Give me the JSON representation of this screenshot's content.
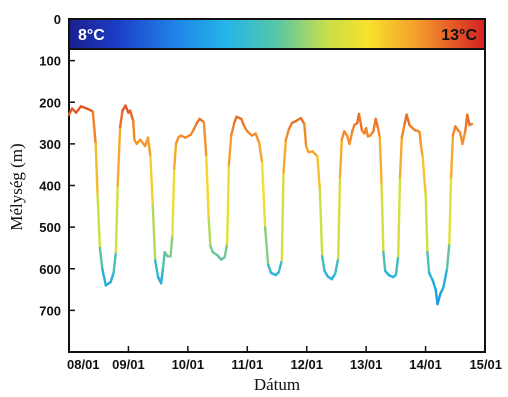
{
  "chart_data": {
    "type": "line",
    "xlabel": "Dátum",
    "ylabel": "Mélység (m)",
    "x_ticks": [
      "08/01",
      "09/01",
      "10/01",
      "11/01",
      "12/01",
      "13/01",
      "14/01",
      "15/01"
    ],
    "y_ticks": [
      0,
      100,
      200,
      300,
      400,
      500,
      600,
      700
    ],
    "xlim": [
      0,
      7
    ],
    "ylim": [
      0,
      800
    ],
    "y_reversed": true,
    "grid": false,
    "colorbar": {
      "min_label": "8°C",
      "max_label": "13°C",
      "colormap": "jet",
      "min": 8,
      "max": 13,
      "position": "top"
    },
    "series": [
      {
        "points": [
          [
            0.0,
            230
          ],
          [
            0.05,
            215
          ],
          [
            0.12,
            225
          ],
          [
            0.2,
            210
          ],
          [
            0.3,
            215
          ],
          [
            0.4,
            222
          ],
          [
            0.45,
            300
          ],
          [
            0.48,
            420
          ],
          [
            0.52,
            550
          ],
          [
            0.56,
            600
          ],
          [
            0.62,
            640
          ],
          [
            0.7,
            632
          ],
          [
            0.75,
            610
          ],
          [
            0.79,
            560
          ],
          [
            0.82,
            400
          ],
          [
            0.86,
            260
          ],
          [
            0.9,
            220
          ],
          [
            0.95,
            208
          ],
          [
            1.0,
            225
          ],
          [
            1.03,
            220
          ],
          [
            1.08,
            245
          ],
          [
            1.1,
            290
          ],
          [
            1.14,
            300
          ],
          [
            1.2,
            290
          ],
          [
            1.28,
            305
          ],
          [
            1.33,
            285
          ],
          [
            1.37,
            330
          ],
          [
            1.41,
            450
          ],
          [
            1.45,
            580
          ],
          [
            1.5,
            620
          ],
          [
            1.55,
            635
          ],
          [
            1.58,
            600
          ],
          [
            1.61,
            560
          ],
          [
            1.66,
            570
          ],
          [
            1.71,
            570
          ],
          [
            1.74,
            520
          ],
          [
            1.77,
            360
          ],
          [
            1.8,
            300
          ],
          [
            1.84,
            285
          ],
          [
            1.88,
            280
          ],
          [
            1.96,
            285
          ],
          [
            2.05,
            278
          ],
          [
            2.1,
            265
          ],
          [
            2.15,
            250
          ],
          [
            2.2,
            240
          ],
          [
            2.27,
            248
          ],
          [
            2.31,
            330
          ],
          [
            2.35,
            480
          ],
          [
            2.38,
            545
          ],
          [
            2.42,
            560
          ],
          [
            2.5,
            568
          ],
          [
            2.56,
            578
          ],
          [
            2.62,
            572
          ],
          [
            2.66,
            540
          ],
          [
            2.69,
            350
          ],
          [
            2.73,
            280
          ],
          [
            2.78,
            250
          ],
          [
            2.82,
            235
          ],
          [
            2.9,
            240
          ],
          [
            2.95,
            258
          ],
          [
            3.0,
            270
          ],
          [
            3.08,
            280
          ],
          [
            3.14,
            275
          ],
          [
            3.2,
            298
          ],
          [
            3.25,
            345
          ],
          [
            3.3,
            500
          ],
          [
            3.35,
            590
          ],
          [
            3.4,
            610
          ],
          [
            3.48,
            615
          ],
          [
            3.53,
            608
          ],
          [
            3.58,
            580
          ],
          [
            3.61,
            370
          ],
          [
            3.65,
            290
          ],
          [
            3.7,
            265
          ],
          [
            3.75,
            250
          ],
          [
            3.82,
            245
          ],
          [
            3.9,
            238
          ],
          [
            3.96,
            252
          ],
          [
            3.99,
            305
          ],
          [
            4.03,
            320
          ],
          [
            4.1,
            318
          ],
          [
            4.18,
            330
          ],
          [
            4.22,
            410
          ],
          [
            4.26,
            570
          ],
          [
            4.3,
            605
          ],
          [
            4.35,
            618
          ],
          [
            4.42,
            625
          ],
          [
            4.48,
            612
          ],
          [
            4.53,
            575
          ],
          [
            4.56,
            380
          ],
          [
            4.59,
            290
          ],
          [
            4.63,
            270
          ],
          [
            4.68,
            280
          ],
          [
            4.72,
            300
          ],
          [
            4.77,
            268
          ],
          [
            4.8,
            255
          ],
          [
            4.85,
            250
          ],
          [
            4.88,
            228
          ],
          [
            4.93,
            268
          ],
          [
            4.97,
            275
          ],
          [
            5.0,
            262
          ],
          [
            5.03,
            282
          ],
          [
            5.07,
            280
          ],
          [
            5.12,
            270
          ],
          [
            5.16,
            240
          ],
          [
            5.2,
            262
          ],
          [
            5.23,
            285
          ],
          [
            5.26,
            400
          ],
          [
            5.29,
            560
          ],
          [
            5.32,
            605
          ],
          [
            5.38,
            615
          ],
          [
            5.45,
            620
          ],
          [
            5.5,
            615
          ],
          [
            5.54,
            570
          ],
          [
            5.57,
            380
          ],
          [
            5.6,
            285
          ],
          [
            5.65,
            250
          ],
          [
            5.68,
            230
          ],
          [
            5.73,
            255
          ],
          [
            5.78,
            262
          ],
          [
            5.83,
            268
          ],
          [
            5.86,
            268
          ],
          [
            5.9,
            272
          ],
          [
            5.92,
            300
          ],
          [
            5.95,
            330
          ],
          [
            6.0,
            420
          ],
          [
            6.03,
            560
          ],
          [
            6.06,
            610
          ],
          [
            6.12,
            628
          ],
          [
            6.17,
            650
          ],
          [
            6.2,
            685
          ],
          [
            6.25,
            660
          ],
          [
            6.3,
            645
          ],
          [
            6.36,
            600
          ],
          [
            6.4,
            540
          ],
          [
            6.43,
            380
          ],
          [
            6.46,
            280
          ],
          [
            6.5,
            258
          ],
          [
            6.55,
            268
          ],
          [
            6.58,
            272
          ],
          [
            6.62,
            300
          ],
          [
            6.67,
            268
          ],
          [
            6.7,
            230
          ],
          [
            6.74,
            255
          ],
          [
            6.78,
            252
          ]
        ]
      }
    ]
  }
}
